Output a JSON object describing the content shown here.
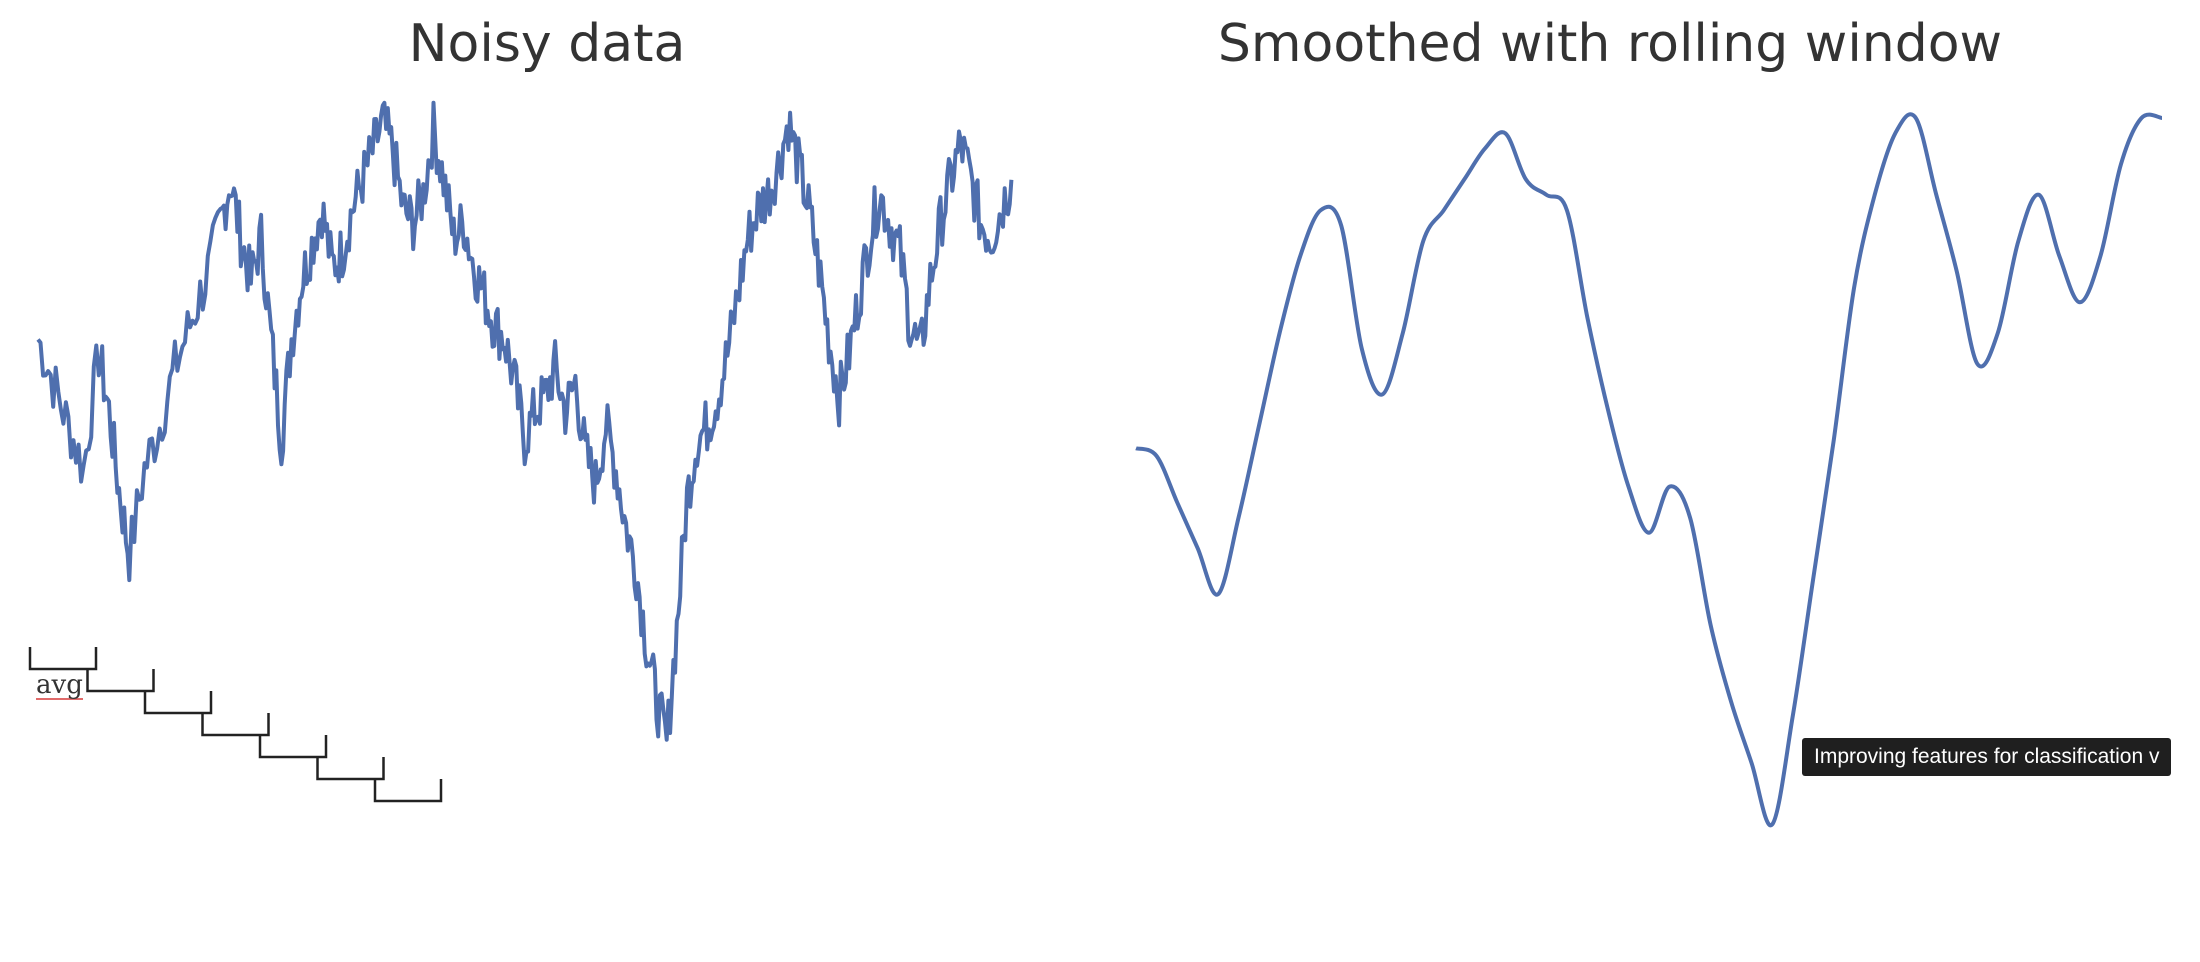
{
  "chart_data": [
    {
      "type": "line",
      "title": "Noisy data",
      "xlabel": "",
      "ylabel": "",
      "grid": false,
      "x_range": [
        0,
        200
      ],
      "ylim": [
        0,
        100
      ],
      "series": [
        {
          "color": "#4f6fae",
          "keypoints": [
            [
              0,
              70
            ],
            [
              3,
              64
            ],
            [
              6,
              58
            ],
            [
              9,
              52
            ],
            [
              12,
              68
            ],
            [
              14,
              60
            ],
            [
              16,
              49
            ],
            [
              18,
              40
            ],
            [
              21,
              52
            ],
            [
              24,
              58
            ],
            [
              27,
              66
            ],
            [
              30,
              72
            ],
            [
              33,
              78
            ],
            [
              36,
              86
            ],
            [
              38,
              92
            ],
            [
              40,
              84
            ],
            [
              42,
              78
            ],
            [
              44,
              84
            ],
            [
              46,
              70
            ],
            [
              48,
              56
            ],
            [
              50,
              70
            ],
            [
              52,
              78
            ],
            [
              54,
              83
            ],
            [
              56,
              88
            ],
            [
              58,
              80
            ],
            [
              60,
              82
            ],
            [
              62,
              88
            ],
            [
              64,
              92
            ],
            [
              66,
              96
            ],
            [
              68,
              100
            ],
            [
              70,
              96
            ],
            [
              72,
              88
            ],
            [
              74,
              86
            ],
            [
              76,
              90
            ],
            [
              78,
              99
            ],
            [
              80,
              92
            ],
            [
              82,
              84
            ],
            [
              84,
              86
            ],
            [
              86,
              80
            ],
            [
              88,
              76
            ],
            [
              90,
              72
            ],
            [
              92,
              70
            ],
            [
              94,
              64
            ],
            [
              96,
              56
            ],
            [
              98,
              60
            ],
            [
              100,
              62
            ],
            [
              102,
              66
            ],
            [
              104,
              60
            ],
            [
              106,
              64
            ],
            [
              108,
              54
            ],
            [
              110,
              50
            ],
            [
              112,
              58
            ],
            [
              114,
              52
            ],
            [
              116,
              44
            ],
            [
              118,
              38
            ],
            [
              120,
              28
            ],
            [
              122,
              20
            ],
            [
              124,
              14
            ],
            [
              126,
              30
            ],
            [
              128,
              48
            ],
            [
              130,
              56
            ],
            [
              132,
              58
            ],
            [
              134,
              62
            ],
            [
              136,
              68
            ],
            [
              138,
              76
            ],
            [
              140,
              84
            ],
            [
              142,
              88
            ],
            [
              144,
              90
            ],
            [
              146,
              94
            ],
            [
              148,
              100
            ],
            [
              150,
              94
            ],
            [
              152,
              88
            ],
            [
              154,
              80
            ],
            [
              156,
              70
            ],
            [
              158,
              62
            ],
            [
              160,
              68
            ],
            [
              162,
              76
            ],
            [
              164,
              84
            ],
            [
              166,
              90
            ],
            [
              168,
              86
            ],
            [
              170,
              82
            ],
            [
              172,
              72
            ],
            [
              174,
              68
            ],
            [
              176,
              78
            ],
            [
              178,
              86
            ],
            [
              180,
              92
            ],
            [
              182,
              97
            ],
            [
              184,
              92
            ],
            [
              186,
              86
            ],
            [
              188,
              84
            ],
            [
              190,
              88
            ],
            [
              192,
              92
            ]
          ],
          "noise_amplitude": 4
        }
      ],
      "annotation": {
        "label": "avg",
        "window_count": 7
      }
    },
    {
      "type": "line",
      "title": "Smoothed with rolling window",
      "xlabel": "",
      "ylabel": "",
      "grid": false,
      "x_range": [
        0,
        200
      ],
      "ylim": [
        0,
        100
      ],
      "series": [
        {
          "color": "#4f6fae",
          "x": [
            0,
            4,
            8,
            12,
            16,
            20,
            24,
            28,
            32,
            36,
            40,
            44,
            48,
            52,
            56,
            60,
            64,
            68,
            72,
            76,
            80,
            84,
            88,
            92,
            96,
            100,
            104,
            108,
            112,
            116,
            120,
            124,
            128,
            132,
            136,
            140,
            144,
            148,
            152,
            156,
            160,
            164,
            168,
            172,
            176,
            180,
            184,
            188,
            192,
            196,
            200
          ],
          "values": [
            57,
            56,
            50,
            44,
            38,
            48,
            60,
            72,
            82,
            88,
            86,
            70,
            64,
            72,
            84,
            88,
            92,
            96,
            98,
            92,
            90,
            88,
            74,
            62,
            52,
            46,
            52,
            48,
            34,
            24,
            16,
            8,
            22,
            40,
            58,
            78,
            90,
            98,
            100,
            90,
            80,
            68,
            72,
            84,
            90,
            82,
            76,
            82,
            94,
            100,
            100
          ]
        }
      ]
    }
  ],
  "tooltip": {
    "text": "Improving features for classification v"
  }
}
